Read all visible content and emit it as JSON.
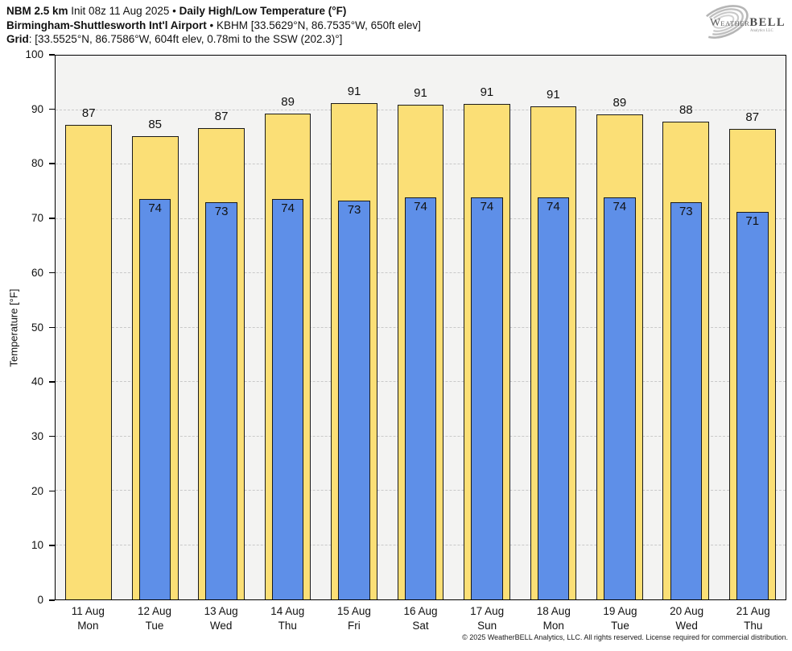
{
  "header": {
    "model": "NBM 2.5 km",
    "init": "Init 08z 11 Aug 2025",
    "bullet1": "•",
    "title": "Daily High/Low Temperature (°F)",
    "station": "Birmingham-Shuttlesworth Int'l Airport",
    "bullet2": "•",
    "station_details": "KBHM [33.5629°N, 86.7535°W, 650ft elev]",
    "grid_label": "Grid",
    "grid_details": ": [33.5525°N, 86.7586°W, 604ft elev, 0.78mi to the SSW (202.3)°]"
  },
  "logo": {
    "w": "W",
    "eather": "EATHER",
    "bell": "BELL",
    "sub": "Analytics LLC"
  },
  "colors": {
    "bar_high": "#fbdf76",
    "bar_low": "#5e8fe8",
    "bar_border": "#1a1a1a",
    "plot_bg": "#f3f3f2",
    "grid": "#c9c9c9"
  },
  "chart_data": {
    "type": "bar",
    "title": "Daily High/Low Temperature (°F)",
    "ylabel": "Temperature [°F]",
    "ylim": [
      0,
      100
    ],
    "yticks": [
      0,
      10,
      20,
      30,
      40,
      50,
      60,
      70,
      80,
      90,
      100
    ],
    "grid": "horizontal-dashed",
    "legend": "none",
    "categories": [
      "11 Aug",
      "12 Aug",
      "13 Aug",
      "14 Aug",
      "15 Aug",
      "16 Aug",
      "17 Aug",
      "18 Aug",
      "19 Aug",
      "20 Aug",
      "21 Aug"
    ],
    "weekdays": [
      "Mon",
      "Tue",
      "Wed",
      "Thu",
      "Fri",
      "Sat",
      "Sun",
      "Mon",
      "Tue",
      "Wed",
      "Thu"
    ],
    "series": [
      {
        "name": "Daily High",
        "color": "#fbdf76",
        "values": [
          87,
          85,
          87,
          89,
          91,
          91,
          91,
          91,
          89,
          88,
          87
        ],
        "bar_heights": [
          87.3,
          85.2,
          86.6,
          89.4,
          91.3,
          91.0,
          91.1,
          90.6,
          89.2,
          87.8,
          86.5
        ]
      },
      {
        "name": "Daily Low",
        "color": "#5e8fe8",
        "values": [
          null,
          74,
          73,
          74,
          73,
          74,
          74,
          74,
          74,
          73,
          71
        ],
        "bar_heights": [
          null,
          73.7,
          73.1,
          73.7,
          73.3,
          74.0,
          74.0,
          74.0,
          73.9,
          73.0,
          71.2
        ]
      }
    ]
  },
  "footer": {
    "copyright": "© 2025 WeatherBELL Analytics, LLC. All rights reserved. License required for commercial distribution."
  }
}
